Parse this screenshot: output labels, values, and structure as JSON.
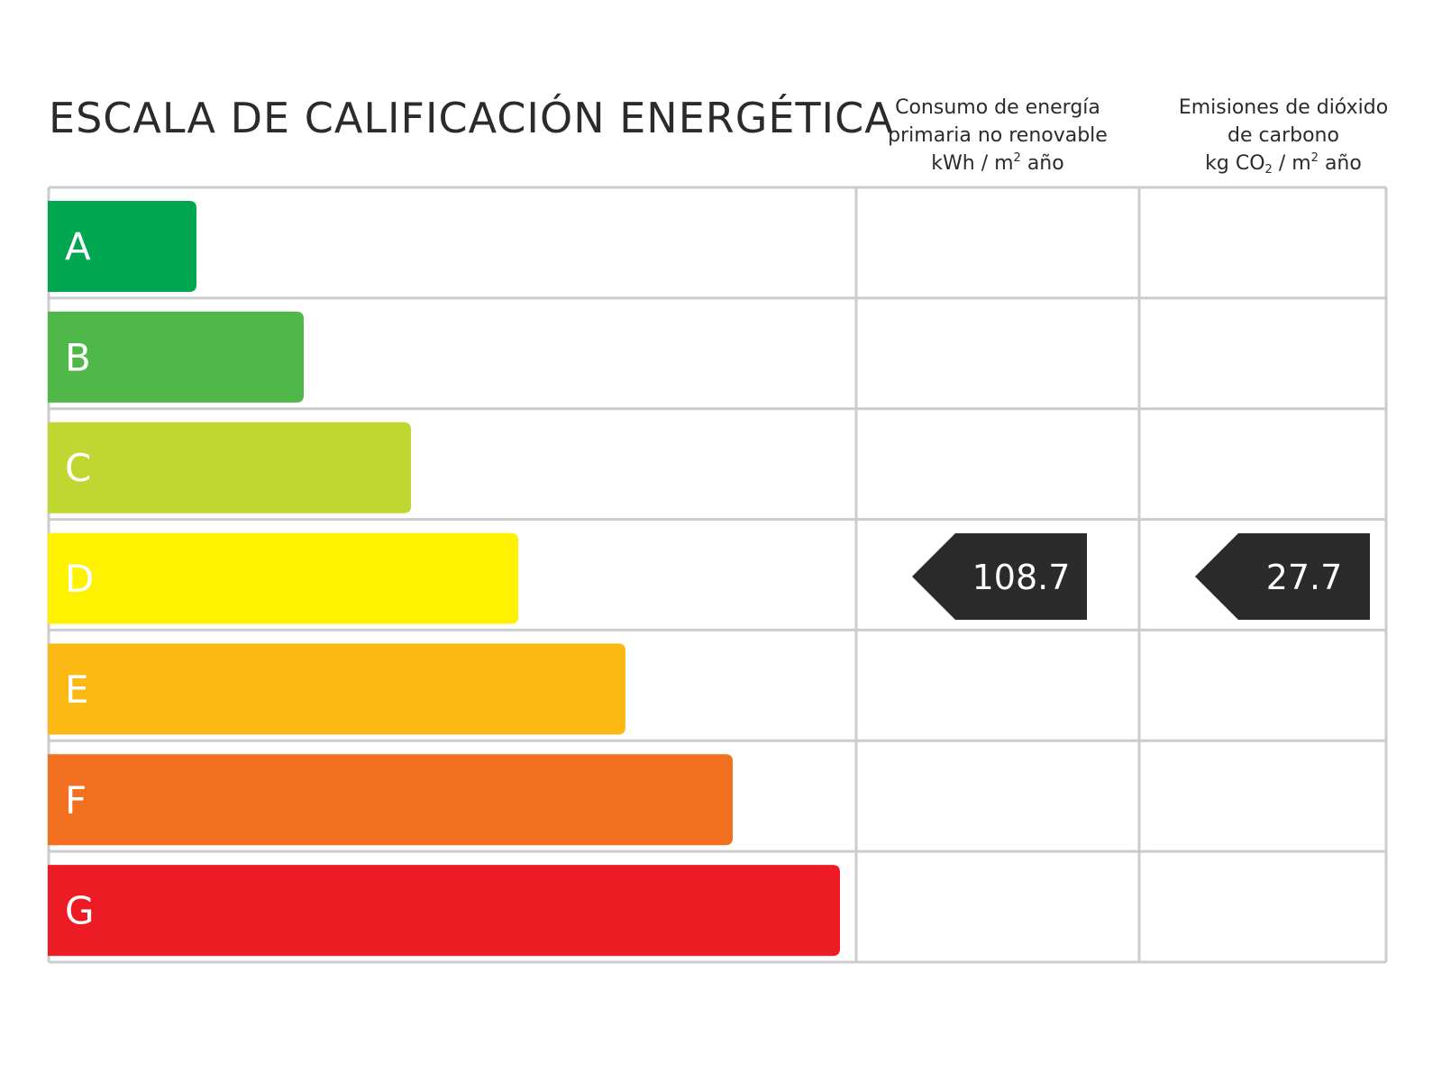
{
  "header": {
    "title": "ESCALA DE CALIFICACIÓN ENERGÉTICA"
  },
  "columns": {
    "energy": {
      "line1": "Consumo de energía",
      "line2": "primaria no renovable",
      "unit_a": "kWh / m",
      "unit_sup": "2",
      "unit_b": " año"
    },
    "co2": {
      "line1": "Emisiones de dióxido",
      "line2": "de carbono",
      "unit_a": "kg CO",
      "unit_sub": "2",
      "unit_mid": " / m",
      "unit_sup": "2",
      "unit_b": " año"
    }
  },
  "chart_data": {
    "type": "bar",
    "categories": [
      "A",
      "B",
      "C",
      "D",
      "E",
      "F",
      "G"
    ],
    "colors": [
      "#00a650",
      "#50b848",
      "#bfd730",
      "#fff200",
      "#fdb913",
      "#f37021",
      "#ed1c24"
    ],
    "relative_lengths": [
      1,
      2,
      3,
      4,
      5,
      6,
      7
    ],
    "indicators": [
      {
        "column": "energy",
        "class": "D",
        "value": "108.7",
        "color": "#2b2b2b"
      },
      {
        "column": "co2",
        "class": "D",
        "value": "27.7",
        "color": "#2b2b2b"
      }
    ]
  }
}
